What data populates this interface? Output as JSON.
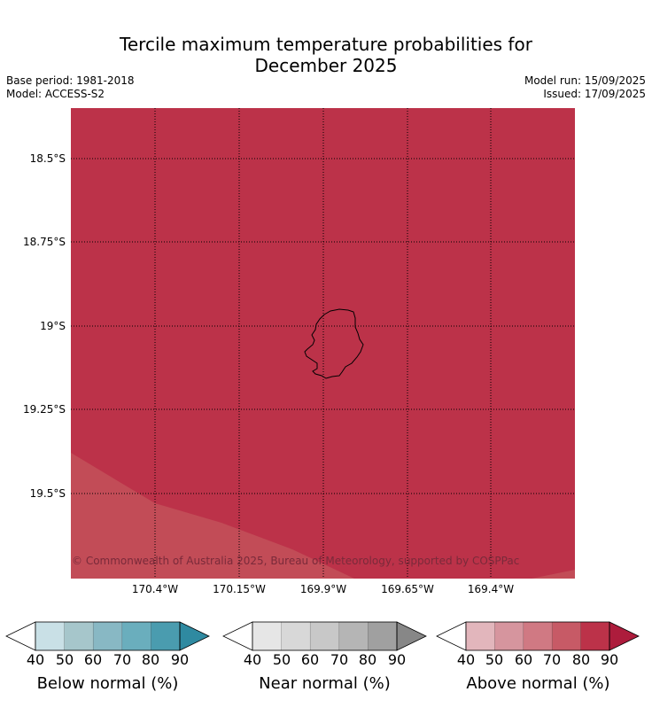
{
  "title": {
    "line1": "Tercile maximum temperature probabilities for",
    "line2": "December 2025"
  },
  "meta": {
    "base_period": "Base period: 1981-2018",
    "model": "Model: ACCESS-S2",
    "model_run": "Model run: 15/09/2025",
    "issued": "Issued: 17/09/2025"
  },
  "map": {
    "lat_labels": [
      "18.5°S",
      "18.75°S",
      "19°S",
      "19.25°S",
      "19.5°S"
    ],
    "lon_labels": [
      "170.4°W",
      "170.15°W",
      "169.9°W",
      "169.65°W",
      "169.4°W"
    ],
    "fill_main": "#bc3249",
    "fill_lower": "#c24c57",
    "copyright": "© Commonwealth of Australia 2025, Bureau of Meteorology, supported by COSPPac"
  },
  "colorbars": [
    {
      "label": "Below normal (%)",
      "ticks": [
        "40",
        "50",
        "60",
        "70",
        "80",
        "90"
      ],
      "colors": [
        "#ffffff",
        "#c9e0e6",
        "#a6c6cb",
        "#88b8c4",
        "#6aaebd",
        "#4a9caf",
        "#2f8aa1"
      ]
    },
    {
      "label": "Near normal (%)",
      "ticks": [
        "40",
        "50",
        "60",
        "70",
        "80",
        "90"
      ],
      "colors": [
        "#ffffff",
        "#e6e6e6",
        "#d8d8d8",
        "#c8c8c8",
        "#b5b5b5",
        "#a0a0a0",
        "#878787"
      ]
    },
    {
      "label": "Above normal (%)",
      "ticks": [
        "40",
        "50",
        "60",
        "70",
        "80",
        "90"
      ],
      "colors": [
        "#ffffff",
        "#e2b6bc",
        "#d6959e",
        "#d07983",
        "#c75a66",
        "#bc3249",
        "#ad1c3c"
      ]
    }
  ]
}
